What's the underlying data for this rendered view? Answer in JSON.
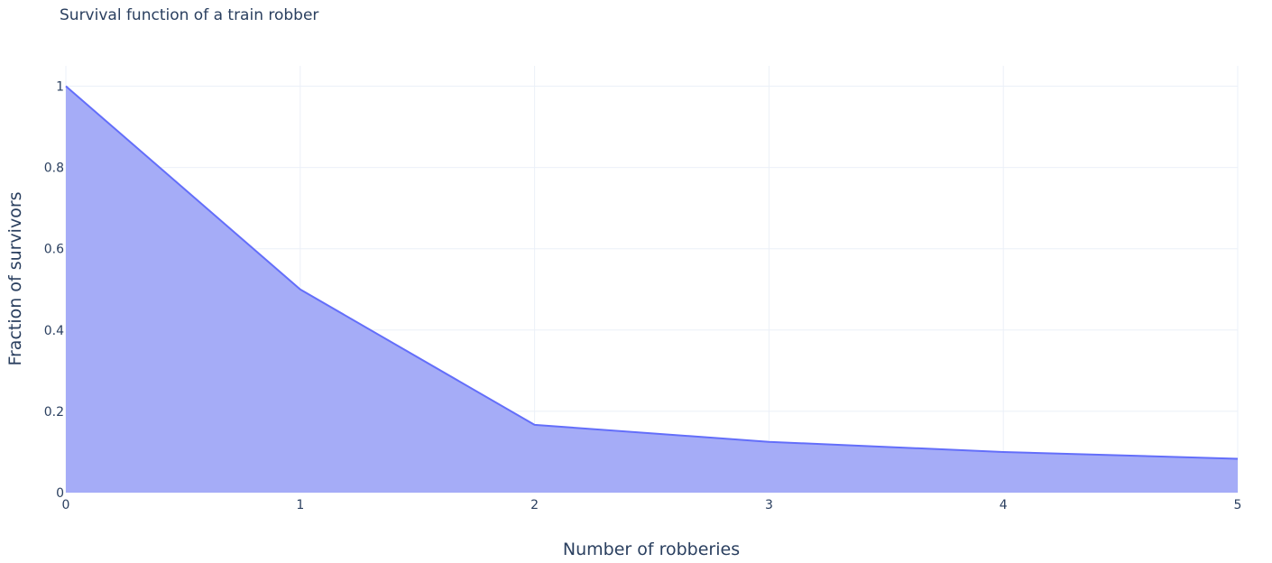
{
  "chart_data": {
    "type": "area",
    "title": "Survival function of a train robber",
    "xlabel": "Number of robberies",
    "ylabel": "Fraction of survivors",
    "x": [
      0,
      1,
      2,
      3,
      4,
      5
    ],
    "y": [
      1,
      0.5,
      0.1667,
      0.125,
      0.1,
      0.0833
    ],
    "xlim": [
      0,
      5
    ],
    "ylim": [
      0,
      1.05
    ],
    "x_ticks": [
      0,
      1,
      2,
      3,
      4,
      5
    ],
    "y_ticks": [
      0,
      0.2,
      0.4,
      0.6,
      0.8,
      1
    ],
    "x_tick_labels": [
      "0",
      "1",
      "2",
      "3",
      "4",
      "5"
    ],
    "y_tick_labels": [
      "0",
      "0.2",
      "0.4",
      "0.6",
      "0.8",
      "1"
    ],
    "grid": true,
    "legend": "none",
    "colors": {
      "line": "#636efa",
      "fill": "#a5acf7",
      "grid": "#ebf0f8",
      "text": "#2a3f5f"
    }
  }
}
